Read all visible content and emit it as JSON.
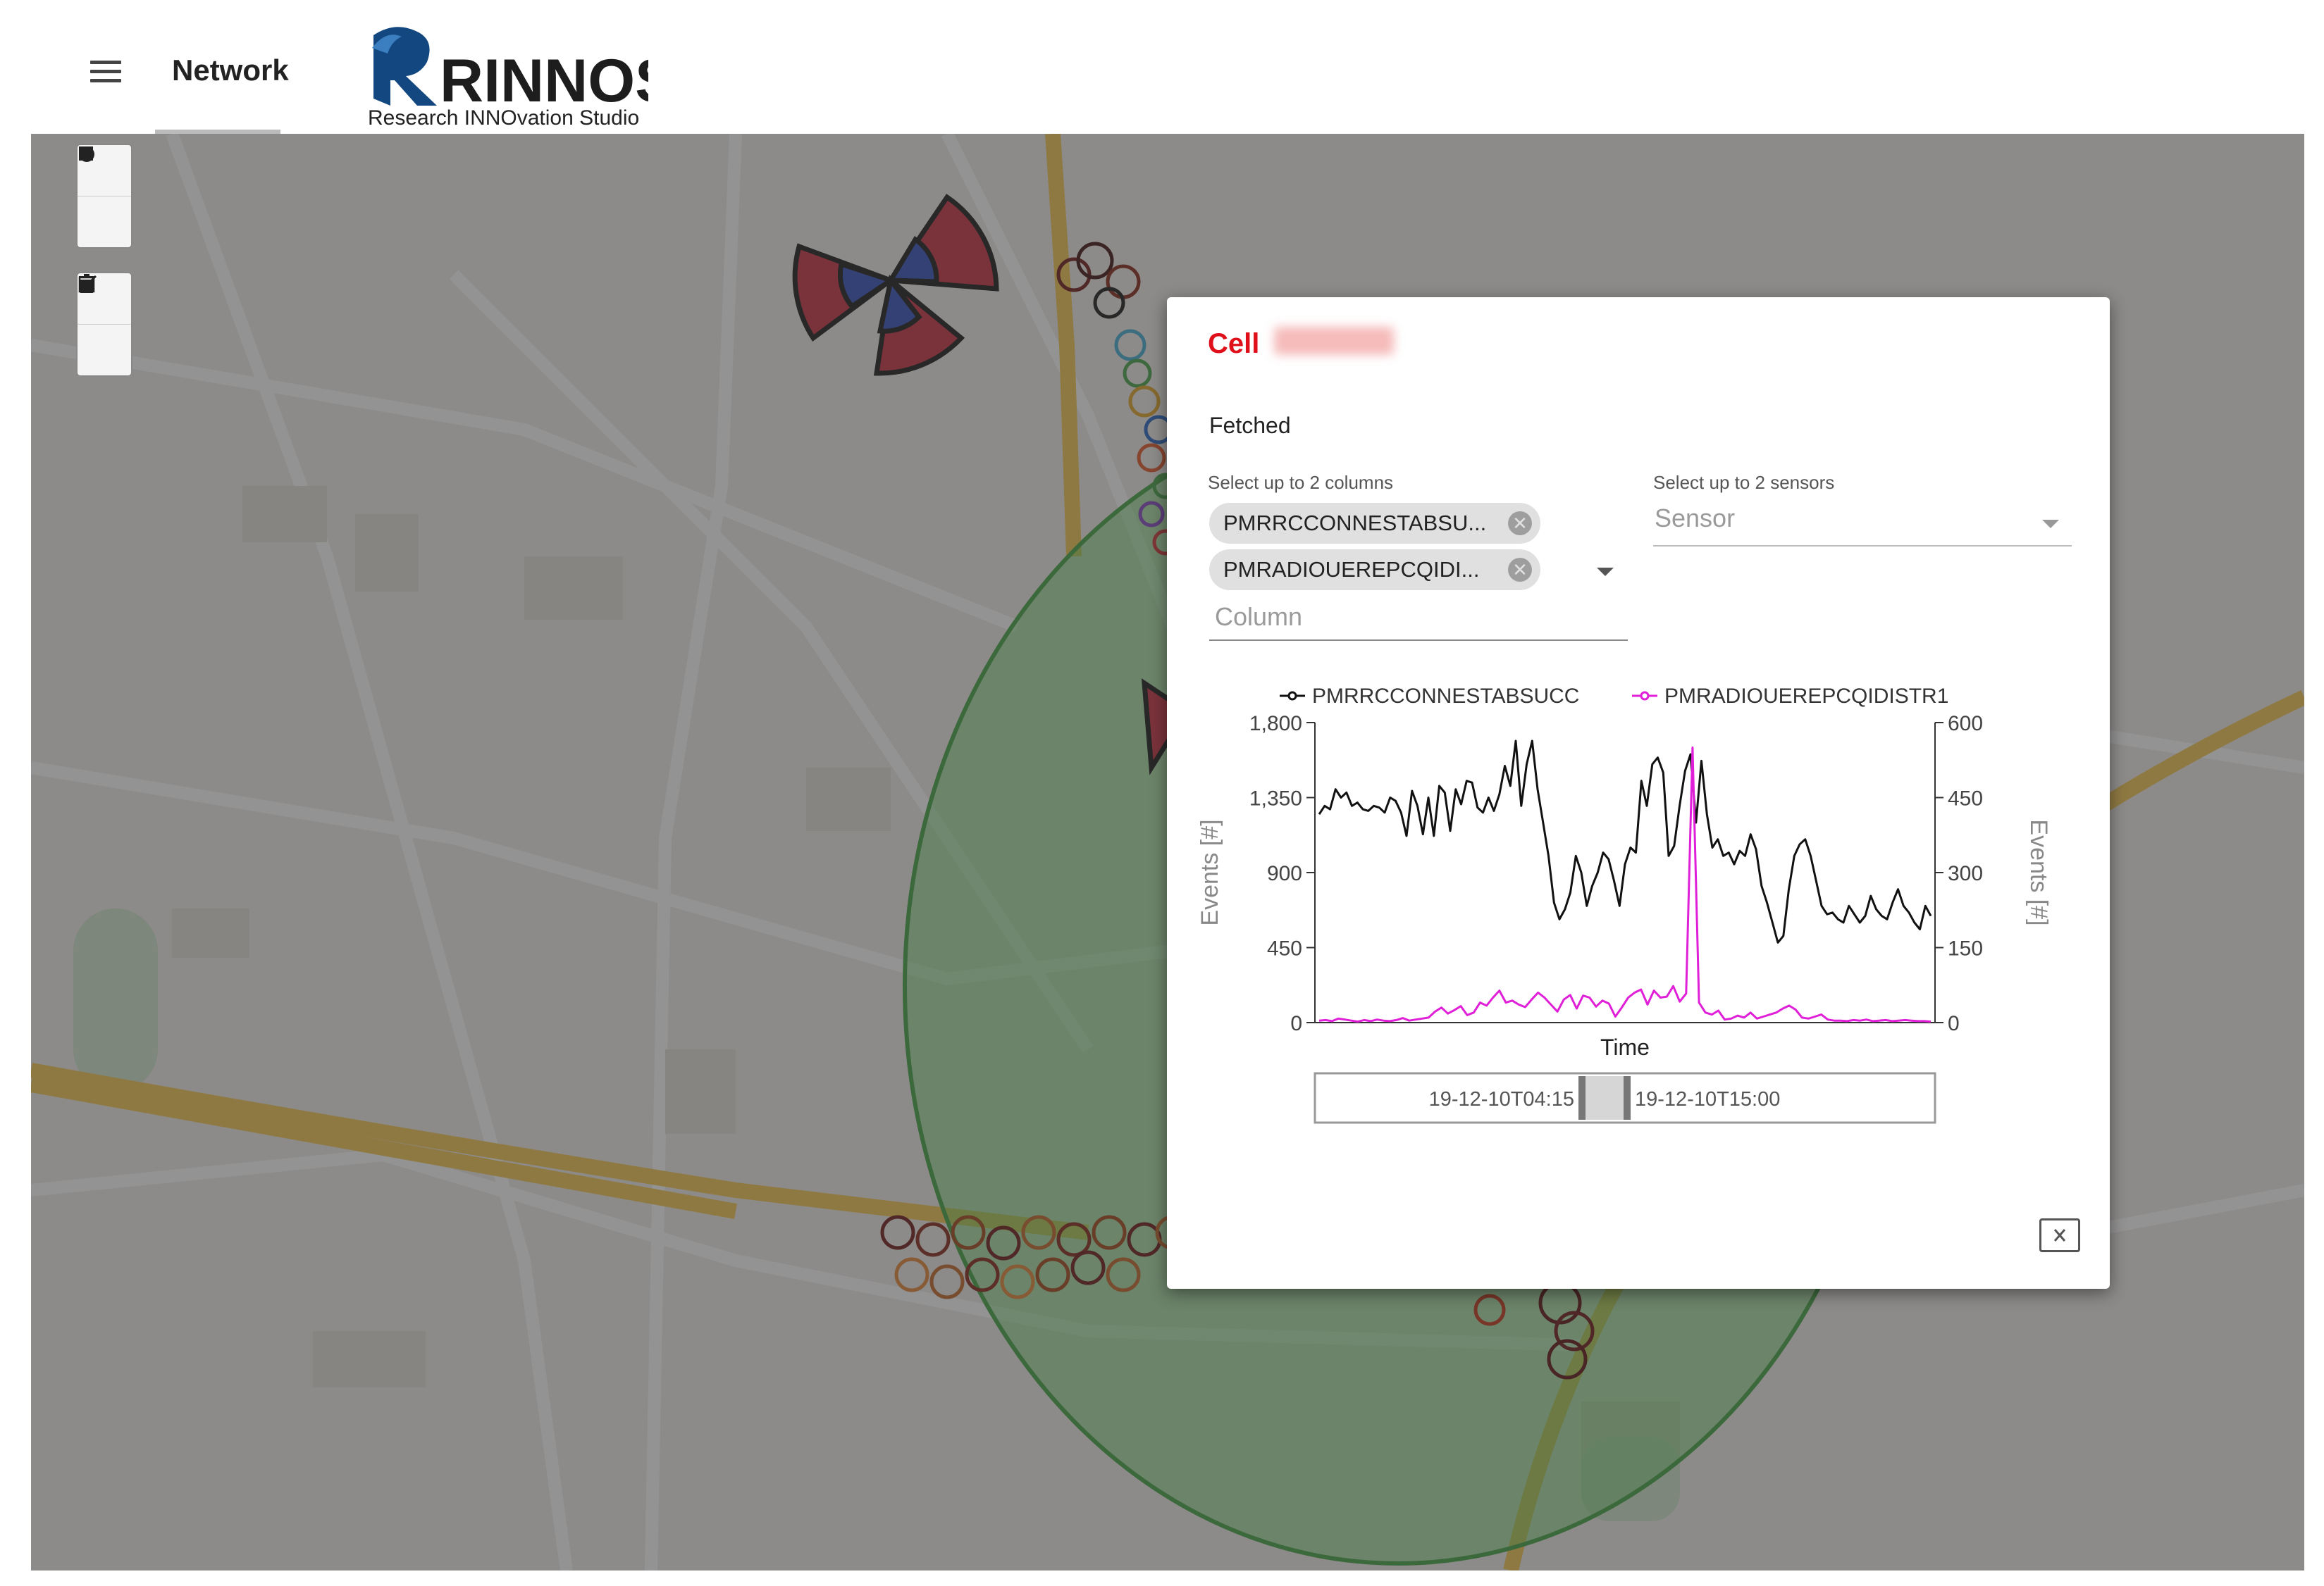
{
  "header": {
    "nav_title": "Network",
    "logo_main": "RINNOS",
    "logo_sub": "Research INNOvation Studio"
  },
  "map": {
    "tools": [
      "square-tool-icon",
      "circle-tool-icon",
      "edit-icon",
      "trash-icon"
    ]
  },
  "dialog": {
    "title": "Cell",
    "status": "Fetched",
    "columns_label": "Select up to 2 columns",
    "chips": [
      "PMRRCCONNESTABSU...",
      "PMRADIOUEREPCQIDI..."
    ],
    "column_placeholder": "Column",
    "sensors_label": "Select up to 2 sensors",
    "sensor_placeholder": "Sensor"
  },
  "chart_data": {
    "type": "line",
    "xlabel": "Time",
    "ylabel": "Events [#]",
    "y2label": "Events [#]",
    "ylim": [
      0,
      1800
    ],
    "y2lim": [
      0,
      600
    ],
    "yticks": [
      "0",
      "450",
      "900",
      "1,350",
      "1,800"
    ],
    "y2ticks": [
      "0",
      "150",
      "300",
      "450",
      "600"
    ],
    "series": [
      {
        "name": "PMRRCCONNESTABSUCC",
        "axis": "left",
        "color": "#111111",
        "values": [
          1250,
          1300,
          1280,
          1400,
          1350,
          1380,
          1300,
          1320,
          1280,
          1270,
          1300,
          1290,
          1260,
          1350,
          1330,
          1260,
          1120,
          1390,
          1300,
          1130,
          1350,
          1120,
          1420,
          1380,
          1150,
          1400,
          1310,
          1450,
          1440,
          1290,
          1260,
          1350,
          1270,
          1370,
          1540,
          1420,
          1690,
          1300,
          1550,
          1690,
          1400,
          1200,
          1000,
          720,
          620,
          680,
          780,
          1000,
          900,
          700,
          820,
          900,
          1020,
          980,
          850,
          700,
          950,
          1050,
          1020,
          1450,
          1300,
          1550,
          1590,
          1500,
          1000,
          1060,
          1300,
          1510,
          1610,
          1200,
          1570,
          1250,
          1050,
          1100,
          1000,
          1020,
          950,
          1030,
          1000,
          1130,
          1040,
          820,
          720,
          600,
          480,
          520,
          800,
          1000,
          1070,
          1100,
          1000,
          850,
          700,
          650,
          660,
          620,
          600,
          700,
          650,
          600,
          640,
          760,
          680,
          640,
          620,
          720,
          800,
          700,
          660,
          600,
          560,
          700,
          640
        ]
      },
      {
        "name": "PMRADIOUEREPCQIDISTR1",
        "axis": "right",
        "color": "#e020d8",
        "values": [
          4,
          5,
          3,
          8,
          6,
          4,
          2,
          5,
          3,
          6,
          4,
          3,
          5,
          9,
          4,
          6,
          8,
          10,
          22,
          30,
          18,
          25,
          33,
          15,
          20,
          40,
          34,
          50,
          64,
          40,
          44,
          36,
          31,
          46,
          60,
          50,
          36,
          22,
          46,
          55,
          28,
          54,
          50,
          32,
          44,
          38,
          12,
          30,
          50,
          60,
          66,
          36,
          64,
          50,
          52,
          73,
          42,
          58,
          550,
          40,
          20,
          16,
          24,
          6,
          8,
          14,
          10,
          20,
          8,
          12,
          16,
          20,
          28,
          34,
          26,
          10,
          8,
          12,
          16,
          6,
          4,
          4,
          3,
          5,
          4,
          6,
          3,
          4,
          5,
          3,
          4,
          5,
          4,
          3,
          3,
          2
        ]
      }
    ],
    "range_start": "19-12-10T04:15",
    "range_end": "19-12-10T15:00",
    "legend": "top"
  }
}
